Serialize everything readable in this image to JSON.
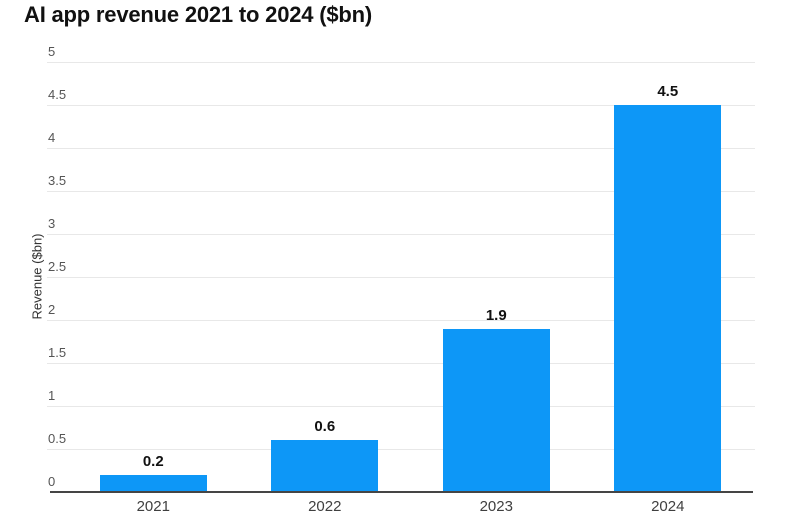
{
  "chart_data": {
    "type": "bar",
    "title": "AI app revenue 2021 to 2024 ($bn)",
    "categories": [
      "2021",
      "2022",
      "2023",
      "2024"
    ],
    "values": [
      0.2,
      0.6,
      1.9,
      4.5
    ],
    "data_labels": [
      "0.2",
      "0.6",
      "1.9",
      "4.5"
    ],
    "xlabel": "",
    "ylabel": "Revenue ($bn)",
    "ylim": [
      0,
      5
    ],
    "ytick_step": 0.5,
    "yticks": [
      {
        "value": 0,
        "label": "0"
      },
      {
        "value": 0.5,
        "label": "0.5"
      },
      {
        "value": 1,
        "label": "1"
      },
      {
        "value": 1.5,
        "label": "1.5"
      },
      {
        "value": 2,
        "label": "2"
      },
      {
        "value": 2.5,
        "label": "2.5"
      },
      {
        "value": 3,
        "label": "3"
      },
      {
        "value": 3.5,
        "label": "3.5"
      },
      {
        "value": 4,
        "label": "4"
      },
      {
        "value": 4.5,
        "label": "4.5"
      },
      {
        "value": 5,
        "label": "5"
      }
    ],
    "grid": "horizontal",
    "legend": "none",
    "colors": {
      "bar": "#0d97f7",
      "gridline": "#e8e8e8",
      "axis_line": "#454545",
      "title": "#111111",
      "tick_label": "#555555",
      "category_label": "#3f3f3f",
      "data_label": "#111111"
    }
  }
}
